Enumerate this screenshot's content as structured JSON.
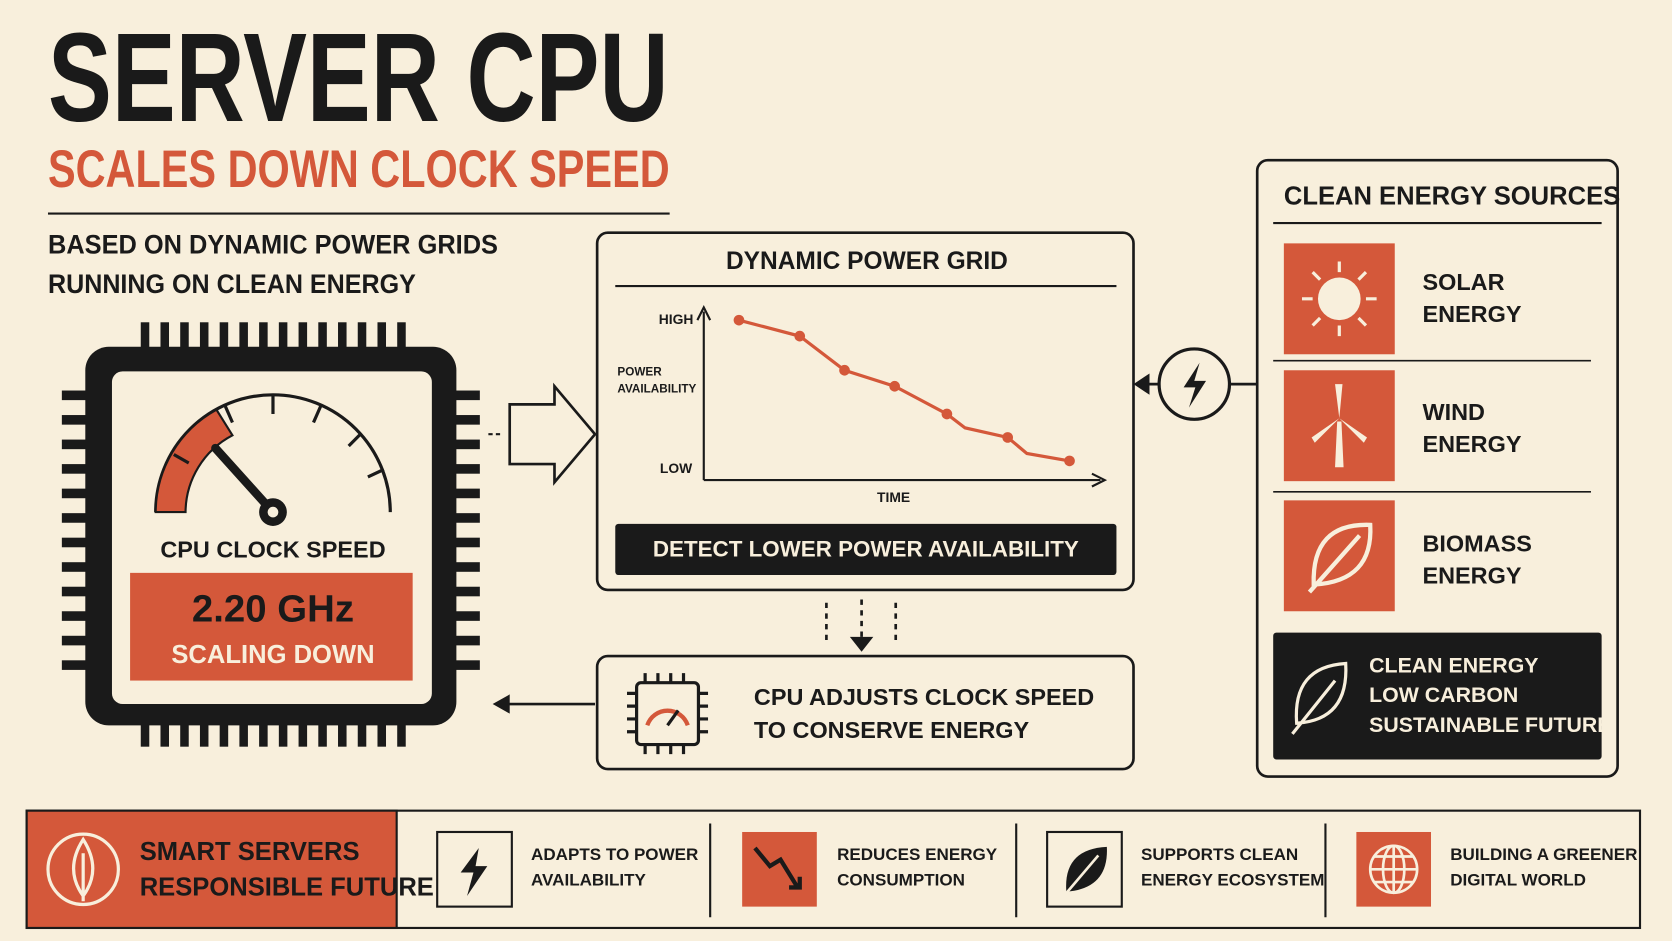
{
  "header": {
    "title": "SERVER CPU",
    "subtitle": "SCALES DOWN CLOCK SPEED",
    "description": [
      "BASED ON DYNAMIC POWER GRIDS",
      "RUNNING ON CLEAN ENERGY"
    ]
  },
  "cpu": {
    "label": "CPU CLOCK SPEED",
    "value": "2.20 GHz",
    "status": "SCALING DOWN"
  },
  "power_grid": {
    "title": "DYNAMIC POWER GRID",
    "y_label": [
      "POWER",
      "AVAILABILITY"
    ],
    "high": "HIGH",
    "low": "LOW",
    "x_label": "TIME",
    "banner": "DETECT LOWER POWER AVAILABILITY"
  },
  "adjust": {
    "lines": [
      "CPU ADJUSTS CLOCK SPEED",
      "TO CONSERVE ENERGY"
    ]
  },
  "sources": {
    "title": "CLEAN ENERGY SOURCES",
    "items": [
      [
        "SOLAR",
        "ENERGY"
      ],
      [
        "WIND",
        "ENERGY"
      ],
      [
        "BIOMASS",
        "ENERGY"
      ]
    ],
    "banner": [
      "CLEAN ENERGY",
      "LOW CARBON",
      "SUSTAINABLE FUTURE"
    ]
  },
  "footer": {
    "lead": [
      "SMART SERVERS",
      "RESPONSIBLE FUTURE"
    ],
    "items": [
      [
        "ADAPTS TO POWER",
        "AVAILABILITY"
      ],
      [
        "REDUCES ENERGY",
        "CONSUMPTION"
      ],
      [
        "SUPPORTS CLEAN",
        "ENERGY ECOSYSTEM"
      ],
      [
        "BUILDING A GREENER",
        "DIGITAL WORLD"
      ]
    ]
  }
}
